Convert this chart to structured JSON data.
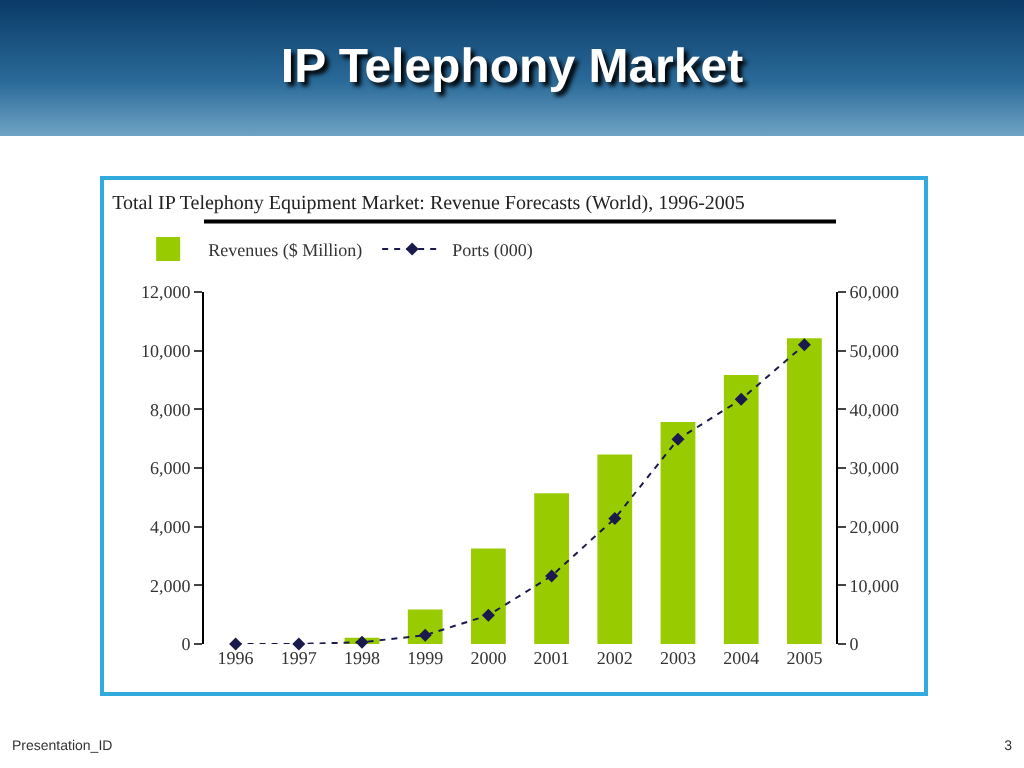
{
  "chart_data": {
    "type": "bar",
    "title": "IP Telephony Market",
    "subtitle": "Total IP Telephony Equipment Market: Revenue Forecasts (World), 1996-2005",
    "categories": [
      "1996",
      "1997",
      "1998",
      "1999",
      "2000",
      "2001",
      "2002",
      "2003",
      "2004",
      "2005"
    ],
    "series": [
      {
        "name": "Revenues ($ Million)",
        "color": "#99cc00",
        "values": [
          0,
          0,
          210,
          1180,
          3260,
          5140,
          6460,
          7570,
          9170,
          10420
        ]
      },
      {
        "name": "Ports (000)",
        "type": "line",
        "axis": "y2",
        "color": "#1a1a4d",
        "marker": "diamond",
        "line_style": "dotted",
        "values": [
          0,
          0,
          300,
          1500,
          4900,
          11600,
          21400,
          34900,
          41700,
          51000
        ]
      }
    ],
    "ylim": [
      0,
      12000
    ],
    "yticks": [
      {
        "value": 0,
        "label": "0"
      },
      {
        "value": 2000,
        "label": "2,000"
      },
      {
        "value": 4000,
        "label": "4,000"
      },
      {
        "value": 6000,
        "label": "6,000"
      },
      {
        "value": 8000,
        "label": "8,000"
      },
      {
        "value": 10000,
        "label": "10,000"
      },
      {
        "value": 12000,
        "label": "12,000"
      }
    ],
    "y2lim": [
      0,
      60000
    ],
    "y2ticks": [
      {
        "value": 0,
        "label": "0"
      },
      {
        "value": 10000,
        "label": "10,000"
      },
      {
        "value": 20000,
        "label": "20,000"
      },
      {
        "value": 30000,
        "label": "30,000"
      },
      {
        "value": 40000,
        "label": "40,000"
      },
      {
        "value": 50000,
        "label": "50,000"
      },
      {
        "value": 60000,
        "label": "60,000"
      }
    ],
    "grid": false,
    "legend": "top left",
    "annotations": [
      "Presentation_ID",
      "3"
    ]
  }
}
